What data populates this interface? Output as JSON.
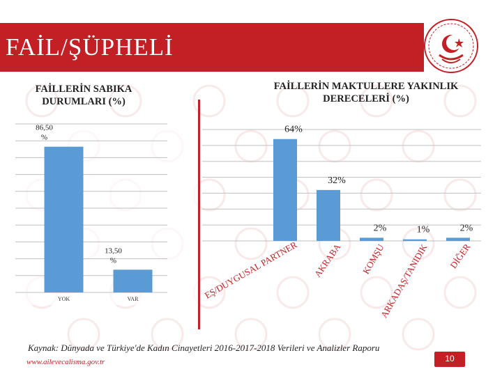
{
  "header": {
    "title": "FAİL/ŞÜPHELİ"
  },
  "left_chart_title": "FAİLLERİN SABIKA DURUMLARI (%)",
  "right_chart_title": "FAİLLERİN MAKTULLERE YAKINLIK DERECELERİ (%)",
  "source": "Kaynak: Dünyada ve Türkiye'de Kadın Cinayetleri 2016-2017-2018 Verileri ve Analizler Raporu",
  "website": "www.ailevecalisma.gov.tr",
  "page_number": "10",
  "colors": {
    "brand_red": "#c32026",
    "bar_blue": "#5b9bd5"
  },
  "logo_icon": "ministry-emblem-icon",
  "chart_data": [
    {
      "type": "bar",
      "title": "FAİLLERİN SABIKA DURUMLARI (%)",
      "categories": [
        "YOK",
        "VAR"
      ],
      "values": [
        86.5,
        13.5
      ],
      "data_labels": [
        "86,50 %",
        "13,50 %"
      ],
      "ylim": [
        0,
        100
      ],
      "grid": true,
      "color": "#5b9bd5"
    },
    {
      "type": "bar",
      "title": "FAİLLERİN MAKTULLERE YAKINLIK DERECELERİ (%)",
      "categories": [
        "EŞ/DUYGUSAL PARTNER",
        "AKRABA",
        "KOMŞU",
        "ARKADAŞ/TANIDIK",
        "DİĞER"
      ],
      "values": [
        64,
        32,
        2,
        1,
        2
      ],
      "data_labels": [
        "64%",
        "32%",
        "2%",
        "1%",
        "2%"
      ],
      "ylim": [
        0,
        70
      ],
      "grid": true,
      "color": "#5b9bd5"
    }
  ]
}
